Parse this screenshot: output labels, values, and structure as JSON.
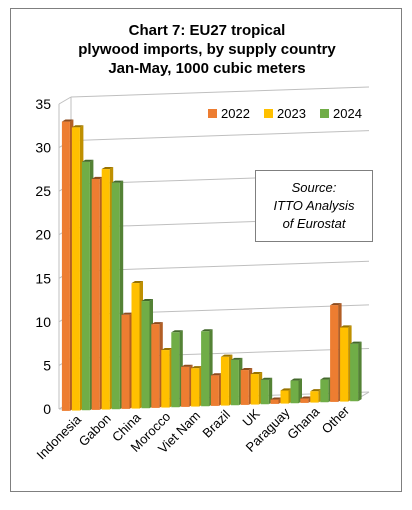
{
  "chart_data": {
    "type": "bar",
    "title_lines": [
      "Chart 7: EU27 tropical",
      "plywood imports, by supply country",
      "Jan-May, 1000 cubic meters"
    ],
    "categories": [
      "Indonesia",
      "Gabon",
      "China",
      "Morocco",
      "Viet Nam",
      "Brazil",
      "UK",
      "Paraguay",
      "Ghana",
      "Other"
    ],
    "series": [
      {
        "name": "2022",
        "color": "#ed7d31",
        "values": [
          33.2,
          26.5,
          10.8,
          9.6,
          4.6,
          3.5,
          4.0,
          0.5,
          0.5,
          11.1
        ]
      },
      {
        "name": "2023",
        "color": "#ffc000",
        "values": [
          32.5,
          27.6,
          14.4,
          6.6,
          4.4,
          5.6,
          3.5,
          1.5,
          1.3,
          8.5
        ]
      },
      {
        "name": "2024",
        "color": "#70ad47",
        "values": [
          28.5,
          26.0,
          12.3,
          8.6,
          8.6,
          5.2,
          2.8,
          2.6,
          2.6,
          6.6
        ]
      }
    ],
    "ylim": [
      0,
      35
    ],
    "yticks": [
      0,
      5,
      10,
      15,
      20,
      25,
      30,
      35
    ],
    "grid": true,
    "legend": "top-right",
    "annotation": [
      "Source:",
      "ITTO Analysis",
      "of Eurostat"
    ]
  }
}
